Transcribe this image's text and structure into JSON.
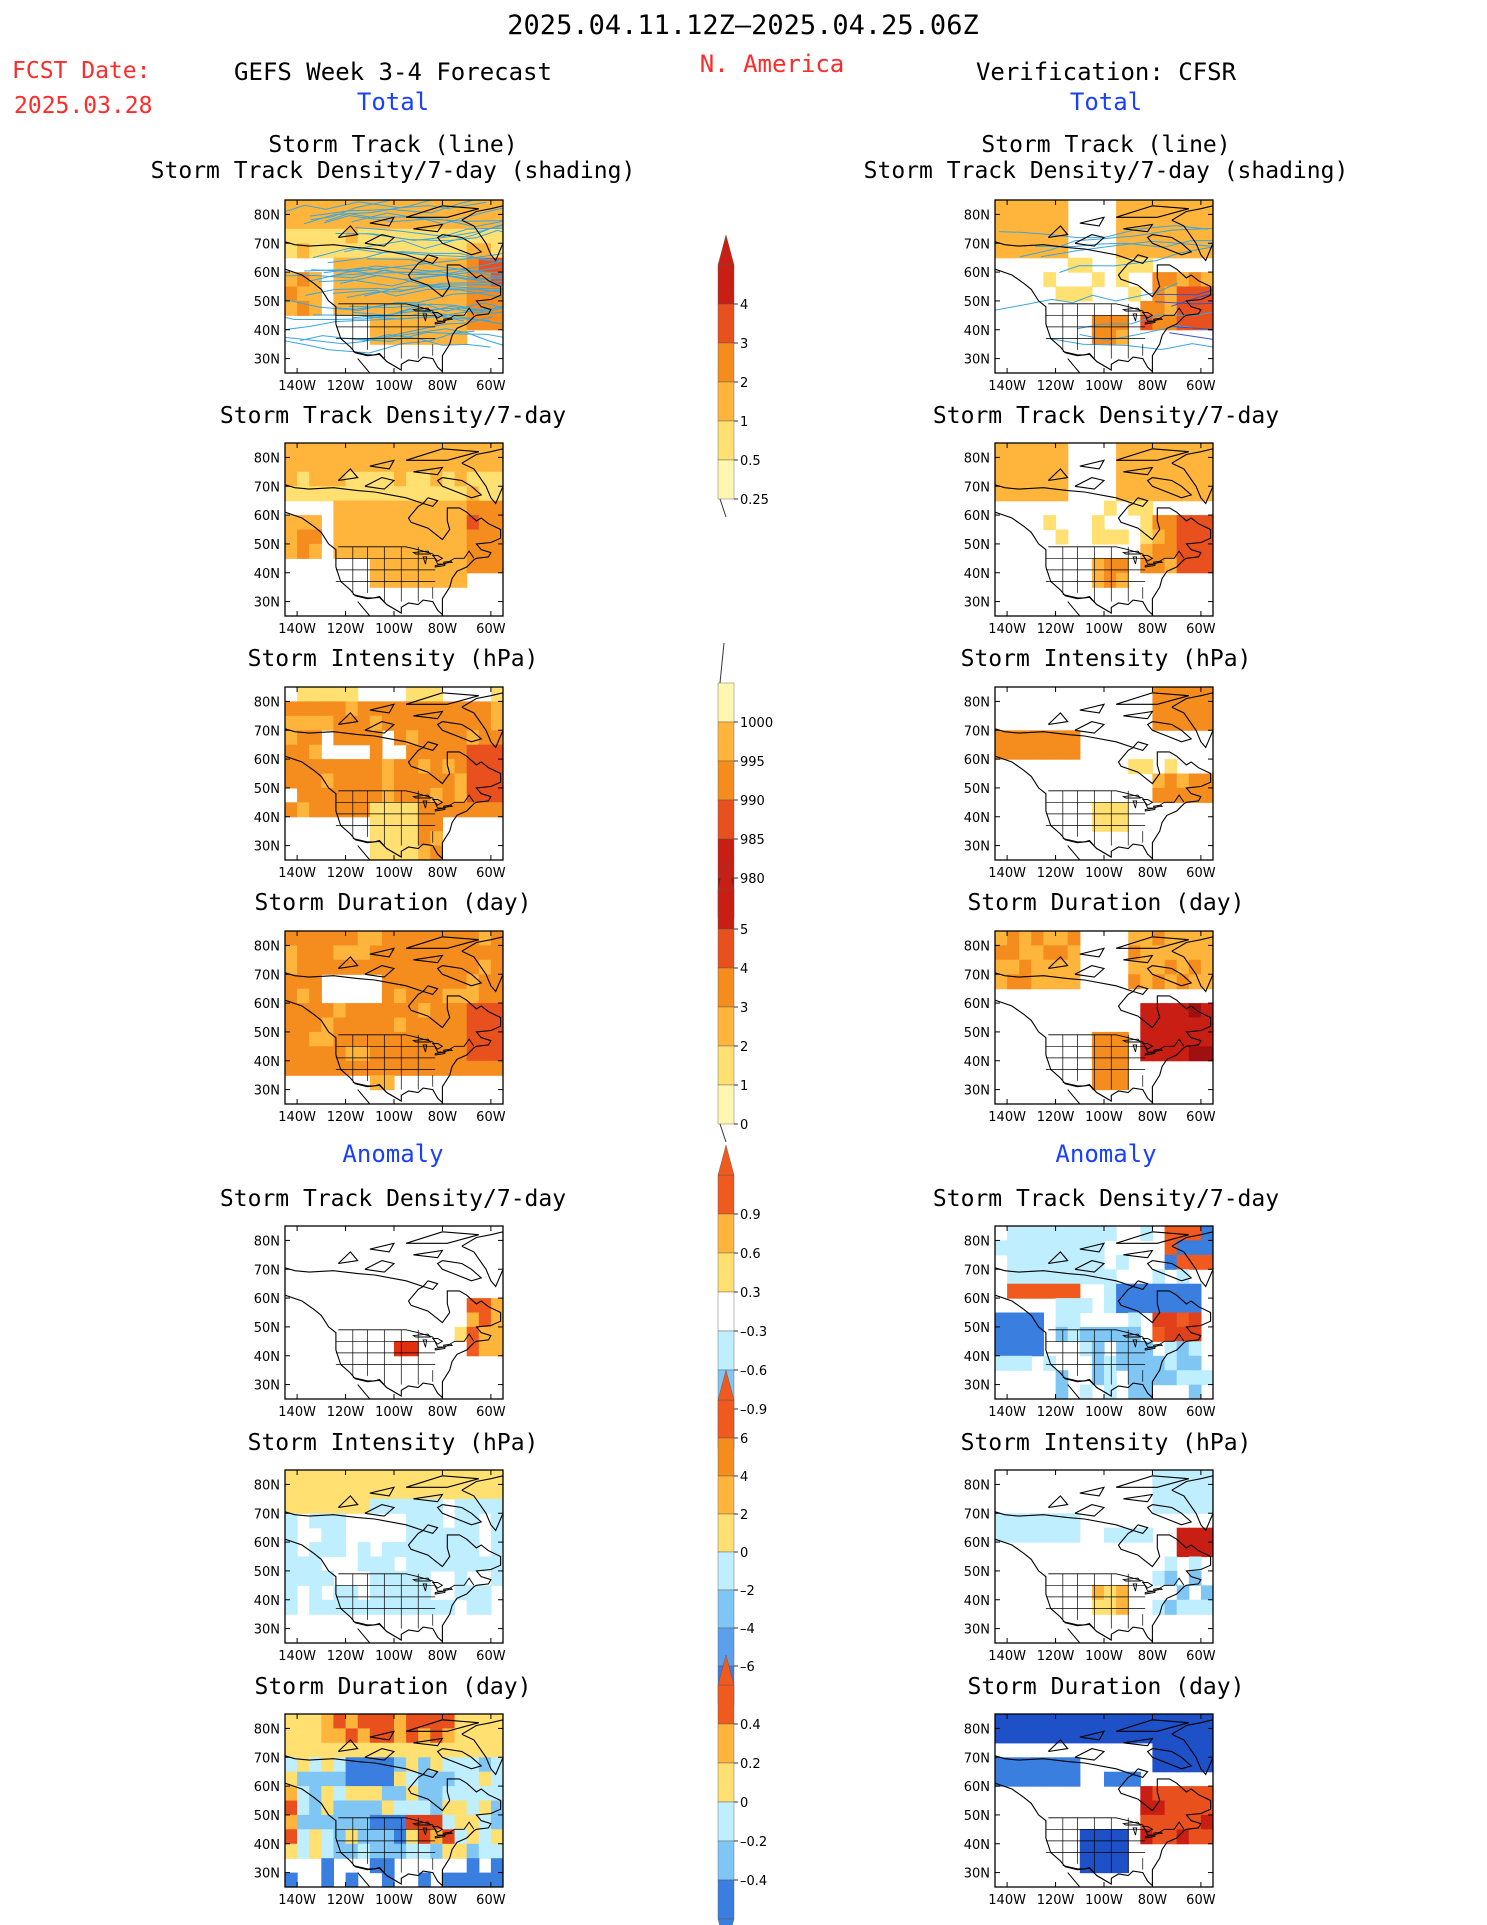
{
  "header": {
    "date_range": "2025.04.11.12Z–2025.04.25.06Z",
    "fcst_label": "FCST Date:",
    "fcst_date": "2025.03.28",
    "forecast_title": "GEFS Week 3-4 Forecast",
    "region": "N. America",
    "verification": "Verification: CFSR"
  },
  "sections": {
    "total": "Total",
    "anomaly": "Anomaly"
  },
  "panel_titles": {
    "track_line": "Storm Track (line)",
    "track_shading": "Storm Track Density/7-day (shading)",
    "density": "Storm Track Density/7-day",
    "intensity": "Storm Intensity (hPa)",
    "duration": "Storm Duration (day)"
  },
  "axis_ticks": {
    "lat": [
      "80N",
      "70N",
      "60N",
      "50N",
      "40N",
      "30N"
    ],
    "lon": [
      "140W",
      "120W",
      "100W",
      "80W",
      "60W"
    ]
  },
  "colorbars": [
    {
      "id": "cb-density-total",
      "labels": [
        "4",
        "3",
        "2",
        "1",
        "0.5",
        "0.25"
      ]
    },
    {
      "id": "cb-intensity-total",
      "labels": [
        "1000",
        "995",
        "990",
        "985",
        "980"
      ]
    },
    {
      "id": "cb-duration-total",
      "labels": [
        "5",
        "4",
        "3",
        "2",
        "1",
        "0"
      ]
    },
    {
      "id": "cb-density-anom",
      "labels": [
        "0.9",
        "0.6",
        "0.3",
        "–0.3",
        "–0.6",
        "–0.9"
      ]
    },
    {
      "id": "cb-intensity-anom",
      "labels": [
        "6",
        "4",
        "2",
        "0",
        "–2",
        "–4",
        "–6"
      ]
    },
    {
      "id": "cb-duration-anom",
      "labels": [
        "0.4",
        "0.2",
        "0",
        "–0.2",
        "–0.4"
      ]
    }
  ],
  "colors": {
    "track_line": "#3aa6e0",
    "warm": [
      "#fff7b0",
      "#ffe070",
      "#ffb43c",
      "#f58c1e",
      "#e8501e",
      "#c81e14"
    ],
    "anomaly_pos": [
      "#ffe070",
      "#ffb43c",
      "#f05a1e"
    ],
    "anomaly_neg": [
      "#bfeeff",
      "#7fc6f5",
      "#3a7fe0",
      "#1e50c8"
    ]
  },
  "chart_data": {
    "type": "heatmap",
    "region": "N. America",
    "lat_range": [
      25,
      85
    ],
    "lon_range": [
      -145,
      -55
    ],
    "panels": [
      {
        "column": "GEFS Week 3-4 Forecast",
        "section": "Total",
        "title": "Storm Track Density/7-day (shading)",
        "note": "Storm Track (line) overlay"
      },
      {
        "column": "Verification: CFSR",
        "section": "Total",
        "title": "Storm Track Density/7-day (shading)",
        "note": "Storm Track (line) overlay"
      },
      {
        "column": "GEFS Week 3-4 Forecast",
        "section": "Total",
        "title": "Storm Track Density/7-day"
      },
      {
        "column": "Verification: CFSR",
        "section": "Total",
        "title": "Storm Track Density/7-day"
      },
      {
        "column": "GEFS Week 3-4 Forecast",
        "section": "Total",
        "title": "Storm Intensity (hPa)"
      },
      {
        "column": "Verification: CFSR",
        "section": "Total",
        "title": "Storm Intensity (hPa)"
      },
      {
        "column": "GEFS Week 3-4 Forecast",
        "section": "Total",
        "title": "Storm Duration (day)"
      },
      {
        "column": "Verification: CFSR",
        "section": "Total",
        "title": "Storm Duration (day)"
      },
      {
        "column": "GEFS Week 3-4 Forecast",
        "section": "Anomaly",
        "title": "Storm Track Density/7-day"
      },
      {
        "column": "Verification: CFSR",
        "section": "Anomaly",
        "title": "Storm Track Density/7-day"
      },
      {
        "column": "GEFS Week 3-4 Forecast",
        "section": "Anomaly",
        "title": "Storm Intensity (hPa)"
      },
      {
        "column": "Verification: CFSR",
        "section": "Anomaly",
        "title": "Storm Intensity (hPa)"
      },
      {
        "column": "GEFS Week 3-4 Forecast",
        "section": "Anomaly",
        "title": "Storm Duration (day)"
      },
      {
        "column": "Verification: CFSR",
        "section": "Anomaly",
        "title": "Storm Duration (day)"
      }
    ]
  }
}
